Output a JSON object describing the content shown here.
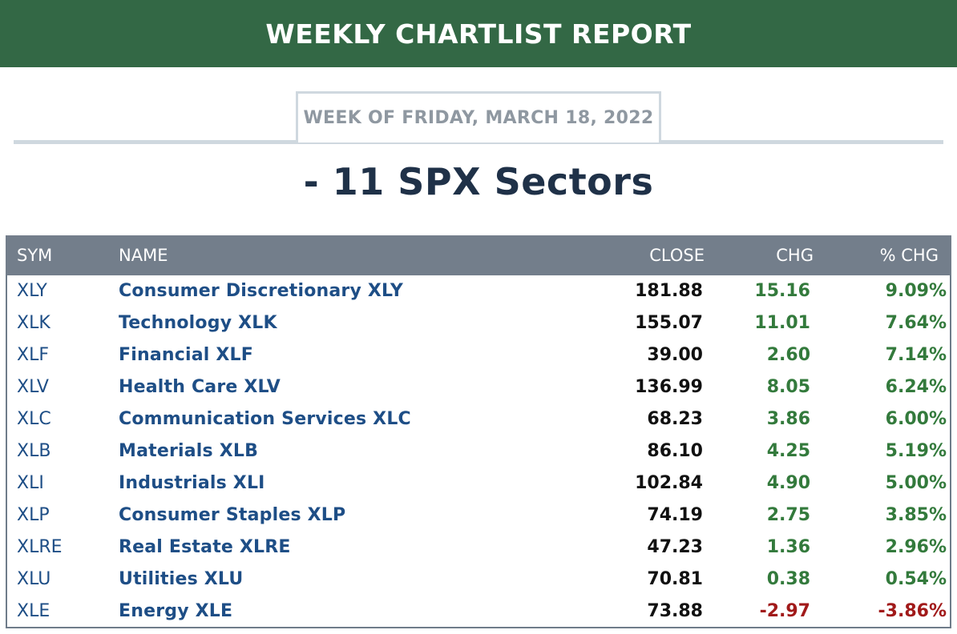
{
  "header": {
    "title": "WEEKLY CHARTLIST REPORT"
  },
  "week": {
    "label": "WEEK OF FRIDAY, MARCH 18, 2022"
  },
  "section": {
    "title": "- 11 SPX Sectors"
  },
  "table": {
    "columns": {
      "sym": "SYM",
      "name": "NAME",
      "close": "CLOSE",
      "chg": "CHG",
      "pct": "% CHG"
    },
    "rows": [
      {
        "sym": "XLY",
        "name": "Consumer Discretionary XLY",
        "close": "181.88",
        "chg": "15.16",
        "pct": "9.09%",
        "direction": "up"
      },
      {
        "sym": "XLK",
        "name": "Technology XLK",
        "close": "155.07",
        "chg": "11.01",
        "pct": "7.64%",
        "direction": "up"
      },
      {
        "sym": "XLF",
        "name": "Financial XLF",
        "close": "39.00",
        "chg": "2.60",
        "pct": "7.14%",
        "direction": "up"
      },
      {
        "sym": "XLV",
        "name": "Health Care XLV",
        "close": "136.99",
        "chg": "8.05",
        "pct": "6.24%",
        "direction": "up"
      },
      {
        "sym": "XLC",
        "name": "Communication Services XLC",
        "close": "68.23",
        "chg": "3.86",
        "pct": "6.00%",
        "direction": "up"
      },
      {
        "sym": "XLB",
        "name": "Materials XLB",
        "close": "86.10",
        "chg": "4.25",
        "pct": "5.19%",
        "direction": "up"
      },
      {
        "sym": "XLI",
        "name": "Industrials XLI",
        "close": "102.84",
        "chg": "4.90",
        "pct": "5.00%",
        "direction": "up"
      },
      {
        "sym": "XLP",
        "name": "Consumer Staples XLP",
        "close": "74.19",
        "chg": "2.75",
        "pct": "3.85%",
        "direction": "up"
      },
      {
        "sym": "XLRE",
        "name": "Real Estate XLRE",
        "close": "47.23",
        "chg": "1.36",
        "pct": "2.96%",
        "direction": "up"
      },
      {
        "sym": "XLU",
        "name": "Utilities XLU",
        "close": "70.81",
        "chg": "0.38",
        "pct": "0.54%",
        "direction": "up"
      },
      {
        "sym": "XLE",
        "name": "Energy XLE",
        "close": "73.88",
        "chg": "-2.97",
        "pct": "-3.86%",
        "direction": "down"
      }
    ]
  },
  "colors": {
    "banner": "#336845",
    "positive": "#337a3c",
    "negative": "#a11a1a",
    "link": "#1e4e86",
    "header_row": "#737e8b"
  }
}
